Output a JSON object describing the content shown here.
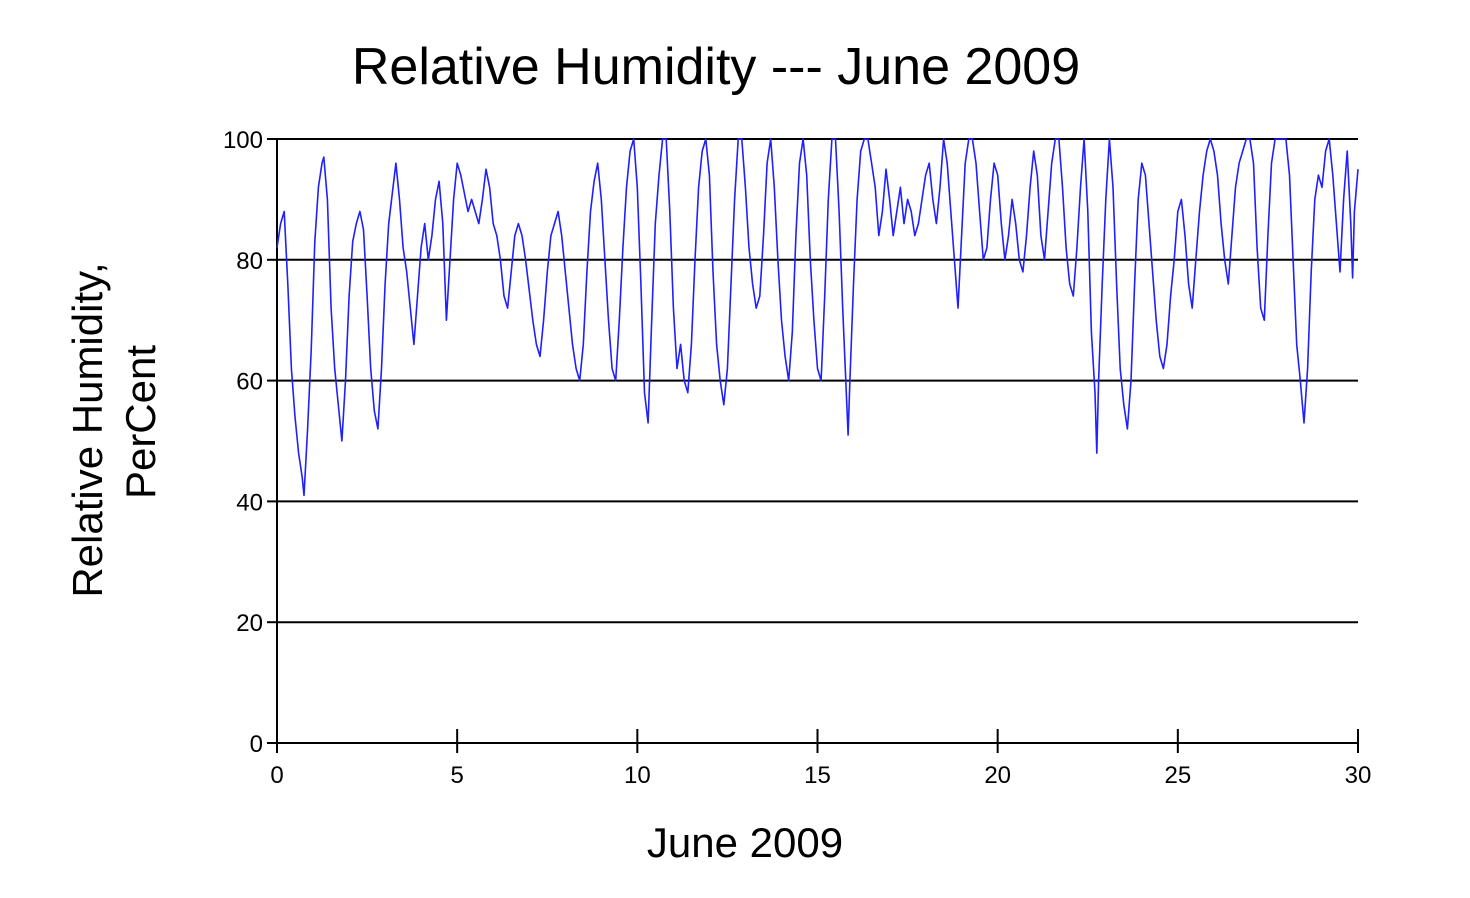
{
  "chart_data": {
    "type": "line",
    "title": "Relative Humidity --- June 2009",
    "xlabel": "June 2009",
    "ylabel_line1": "Relative Humidity,",
    "ylabel_line2": "PerCent",
    "xlim": [
      0,
      30
    ],
    "ylim": [
      0,
      100
    ],
    "xticks": [
      0,
      5,
      10,
      15,
      20,
      25,
      30
    ],
    "xtick_labels": [
      "0",
      "5",
      "10",
      "15",
      "20",
      "25",
      "30"
    ],
    "yticks": [
      0,
      20,
      40,
      60,
      80,
      100
    ],
    "ytick_labels": [
      "0",
      "20",
      "40",
      "60",
      "80",
      "100"
    ],
    "grid": "horizontal",
    "line_color": "#1f1fff",
    "series": [
      {
        "points": [
          [
            0.0,
            82
          ],
          [
            0.1,
            86
          ],
          [
            0.2,
            88
          ],
          [
            0.3,
            76
          ],
          [
            0.4,
            62
          ],
          [
            0.5,
            54
          ],
          [
            0.6,
            48
          ],
          [
            0.7,
            44
          ],
          [
            0.75,
            41
          ],
          [
            0.85,
            52
          ],
          [
            0.95,
            65
          ],
          [
            1.05,
            83
          ],
          [
            1.15,
            92
          ],
          [
            1.25,
            96
          ],
          [
            1.3,
            97
          ],
          [
            1.4,
            90
          ],
          [
            1.5,
            72
          ],
          [
            1.6,
            62
          ],
          [
            1.7,
            56
          ],
          [
            1.8,
            50
          ],
          [
            1.9,
            60
          ],
          [
            2.0,
            74
          ],
          [
            2.1,
            83
          ],
          [
            2.2,
            86
          ],
          [
            2.3,
            88
          ],
          [
            2.4,
            85
          ],
          [
            2.5,
            74
          ],
          [
            2.6,
            62
          ],
          [
            2.7,
            55
          ],
          [
            2.8,
            52
          ],
          [
            2.9,
            62
          ],
          [
            3.0,
            76
          ],
          [
            3.1,
            86
          ],
          [
            3.2,
            91
          ],
          [
            3.3,
            96
          ],
          [
            3.4,
            90
          ],
          [
            3.5,
            82
          ],
          [
            3.6,
            78
          ],
          [
            3.7,
            72
          ],
          [
            3.8,
            66
          ],
          [
            3.9,
            74
          ],
          [
            4.0,
            82
          ],
          [
            4.1,
            86
          ],
          [
            4.2,
            80
          ],
          [
            4.3,
            84
          ],
          [
            4.4,
            90
          ],
          [
            4.5,
            93
          ],
          [
            4.6,
            86
          ],
          [
            4.7,
            70
          ],
          [
            4.8,
            80
          ],
          [
            4.9,
            90
          ],
          [
            5.0,
            96
          ],
          [
            5.1,
            94
          ],
          [
            5.2,
            91
          ],
          [
            5.3,
            88
          ],
          [
            5.4,
            90
          ],
          [
            5.5,
            88
          ],
          [
            5.6,
            86
          ],
          [
            5.7,
            90
          ],
          [
            5.8,
            95
          ],
          [
            5.9,
            92
          ],
          [
            6.0,
            86
          ],
          [
            6.1,
            84
          ],
          [
            6.2,
            80
          ],
          [
            6.3,
            74
          ],
          [
            6.4,
            72
          ],
          [
            6.5,
            78
          ],
          [
            6.6,
            84
          ],
          [
            6.7,
            86
          ],
          [
            6.8,
            84
          ],
          [
            6.9,
            80
          ],
          [
            7.0,
            75
          ],
          [
            7.1,
            70
          ],
          [
            7.2,
            66
          ],
          [
            7.3,
            64
          ],
          [
            7.4,
            70
          ],
          [
            7.5,
            78
          ],
          [
            7.6,
            84
          ],
          [
            7.7,
            86
          ],
          [
            7.8,
            88
          ],
          [
            7.9,
            84
          ],
          [
            8.0,
            78
          ],
          [
            8.1,
            72
          ],
          [
            8.2,
            66
          ],
          [
            8.3,
            62
          ],
          [
            8.4,
            60
          ],
          [
            8.5,
            66
          ],
          [
            8.6,
            78
          ],
          [
            8.7,
            88
          ],
          [
            8.8,
            93
          ],
          [
            8.9,
            96
          ],
          [
            9.0,
            90
          ],
          [
            9.1,
            80
          ],
          [
            9.2,
            70
          ],
          [
            9.3,
            62
          ],
          [
            9.4,
            60
          ],
          [
            9.5,
            70
          ],
          [
            9.6,
            82
          ],
          [
            9.7,
            92
          ],
          [
            9.8,
            98
          ],
          [
            9.9,
            100
          ],
          [
            10.0,
            92
          ],
          [
            10.1,
            76
          ],
          [
            10.2,
            58
          ],
          [
            10.3,
            53
          ],
          [
            10.4,
            70
          ],
          [
            10.5,
            86
          ],
          [
            10.6,
            94
          ],
          [
            10.7,
            100
          ],
          [
            10.8,
            100
          ],
          [
            10.9,
            88
          ],
          [
            11.0,
            72
          ],
          [
            11.1,
            62
          ],
          [
            11.2,
            66
          ],
          [
            11.3,
            60
          ],
          [
            11.4,
            58
          ],
          [
            11.5,
            66
          ],
          [
            11.6,
            80
          ],
          [
            11.7,
            92
          ],
          [
            11.8,
            98
          ],
          [
            11.9,
            100
          ],
          [
            12.0,
            94
          ],
          [
            12.1,
            78
          ],
          [
            12.2,
            66
          ],
          [
            12.3,
            60
          ],
          [
            12.4,
            56
          ],
          [
            12.5,
            62
          ],
          [
            12.6,
            76
          ],
          [
            12.7,
            90
          ],
          [
            12.8,
            100
          ],
          [
            12.9,
            100
          ],
          [
            13.0,
            92
          ],
          [
            13.1,
            82
          ],
          [
            13.2,
            76
          ],
          [
            13.3,
            72
          ],
          [
            13.4,
            74
          ],
          [
            13.5,
            84
          ],
          [
            13.6,
            96
          ],
          [
            13.7,
            100
          ],
          [
            13.8,
            92
          ],
          [
            13.9,
            80
          ],
          [
            14.0,
            70
          ],
          [
            14.1,
            64
          ],
          [
            14.2,
            60
          ],
          [
            14.3,
            68
          ],
          [
            14.4,
            84
          ],
          [
            14.5,
            96
          ],
          [
            14.6,
            100
          ],
          [
            14.7,
            94
          ],
          [
            14.8,
            80
          ],
          [
            14.9,
            70
          ],
          [
            15.0,
            62
          ],
          [
            15.1,
            60
          ],
          [
            15.2,
            74
          ],
          [
            15.3,
            90
          ],
          [
            15.4,
            100
          ],
          [
            15.5,
            100
          ],
          [
            15.6,
            88
          ],
          [
            15.7,
            72
          ],
          [
            15.8,
            58
          ],
          [
            15.85,
            51
          ],
          [
            15.9,
            60
          ],
          [
            16.0,
            76
          ],
          [
            16.1,
            90
          ],
          [
            16.2,
            98
          ],
          [
            16.3,
            100
          ],
          [
            16.4,
            100
          ],
          [
            16.5,
            96
          ],
          [
            16.6,
            92
          ],
          [
            16.7,
            84
          ],
          [
            16.8,
            88
          ],
          [
            16.9,
            95
          ],
          [
            17.0,
            90
          ],
          [
            17.1,
            84
          ],
          [
            17.2,
            88
          ],
          [
            17.3,
            92
          ],
          [
            17.4,
            86
          ],
          [
            17.5,
            90
          ],
          [
            17.6,
            88
          ],
          [
            17.7,
            84
          ],
          [
            17.8,
            86
          ],
          [
            17.9,
            90
          ],
          [
            18.0,
            94
          ],
          [
            18.1,
            96
          ],
          [
            18.2,
            90
          ],
          [
            18.3,
            86
          ],
          [
            18.4,
            92
          ],
          [
            18.5,
            100
          ],
          [
            18.6,
            96
          ],
          [
            18.7,
            88
          ],
          [
            18.8,
            80
          ],
          [
            18.9,
            72
          ],
          [
            19.0,
            84
          ],
          [
            19.1,
            96
          ],
          [
            19.2,
            100
          ],
          [
            19.3,
            100
          ],
          [
            19.4,
            96
          ],
          [
            19.5,
            88
          ],
          [
            19.6,
            80
          ],
          [
            19.7,
            82
          ],
          [
            19.8,
            90
          ],
          [
            19.9,
            96
          ],
          [
            20.0,
            94
          ],
          [
            20.1,
            86
          ],
          [
            20.2,
            80
          ],
          [
            20.3,
            84
          ],
          [
            20.4,
            90
          ],
          [
            20.5,
            86
          ],
          [
            20.6,
            80
          ],
          [
            20.7,
            78
          ],
          [
            20.8,
            84
          ],
          [
            20.9,
            92
          ],
          [
            21.0,
            98
          ],
          [
            21.1,
            94
          ],
          [
            21.2,
            84
          ],
          [
            21.3,
            80
          ],
          [
            21.4,
            88
          ],
          [
            21.5,
            96
          ],
          [
            21.6,
            100
          ],
          [
            21.7,
            100
          ],
          [
            21.8,
            92
          ],
          [
            21.9,
            82
          ],
          [
            22.0,
            76
          ],
          [
            22.1,
            74
          ],
          [
            22.2,
            82
          ],
          [
            22.3,
            92
          ],
          [
            22.4,
            100
          ],
          [
            22.5,
            88
          ],
          [
            22.6,
            68
          ],
          [
            22.7,
            58
          ],
          [
            22.75,
            48
          ],
          [
            22.8,
            60
          ],
          [
            22.9,
            76
          ],
          [
            23.0,
            90
          ],
          [
            23.1,
            100
          ],
          [
            23.2,
            92
          ],
          [
            23.3,
            76
          ],
          [
            23.4,
            62
          ],
          [
            23.5,
            56
          ],
          [
            23.6,
            52
          ],
          [
            23.7,
            60
          ],
          [
            23.8,
            76
          ],
          [
            23.9,
            90
          ],
          [
            24.0,
            96
          ],
          [
            24.1,
            94
          ],
          [
            24.2,
            86
          ],
          [
            24.3,
            78
          ],
          [
            24.4,
            70
          ],
          [
            24.5,
            64
          ],
          [
            24.6,
            62
          ],
          [
            24.7,
            66
          ],
          [
            24.8,
            74
          ],
          [
            24.9,
            80
          ],
          [
            25.0,
            88
          ],
          [
            25.1,
            90
          ],
          [
            25.2,
            84
          ],
          [
            25.3,
            76
          ],
          [
            25.4,
            72
          ],
          [
            25.5,
            80
          ],
          [
            25.6,
            88
          ],
          [
            25.7,
            94
          ],
          [
            25.8,
            98
          ],
          [
            25.9,
            100
          ],
          [
            26.0,
            98
          ],
          [
            26.1,
            94
          ],
          [
            26.2,
            86
          ],
          [
            26.3,
            80
          ],
          [
            26.4,
            76
          ],
          [
            26.5,
            84
          ],
          [
            26.6,
            92
          ],
          [
            26.7,
            96
          ],
          [
            26.8,
            98
          ],
          [
            26.9,
            100
          ],
          [
            27.0,
            100
          ],
          [
            27.1,
            96
          ],
          [
            27.2,
            82
          ],
          [
            27.3,
            72
          ],
          [
            27.4,
            70
          ],
          [
            27.5,
            84
          ],
          [
            27.6,
            96
          ],
          [
            27.7,
            100
          ],
          [
            27.8,
            100
          ],
          [
            27.9,
            100
          ],
          [
            28.0,
            100
          ],
          [
            28.1,
            94
          ],
          [
            28.2,
            80
          ],
          [
            28.3,
            66
          ],
          [
            28.4,
            60
          ],
          [
            28.5,
            53
          ],
          [
            28.6,
            62
          ],
          [
            28.7,
            78
          ],
          [
            28.8,
            90
          ],
          [
            28.9,
            94
          ],
          [
            29.0,
            92
          ],
          [
            29.1,
            98
          ],
          [
            29.2,
            100
          ],
          [
            29.3,
            94
          ],
          [
            29.4,
            86
          ],
          [
            29.5,
            78
          ],
          [
            29.6,
            90
          ],
          [
            29.7,
            98
          ],
          [
            29.8,
            86
          ],
          [
            29.85,
            77
          ],
          [
            29.9,
            88
          ],
          [
            30.0,
            95
          ]
        ]
      }
    ]
  }
}
